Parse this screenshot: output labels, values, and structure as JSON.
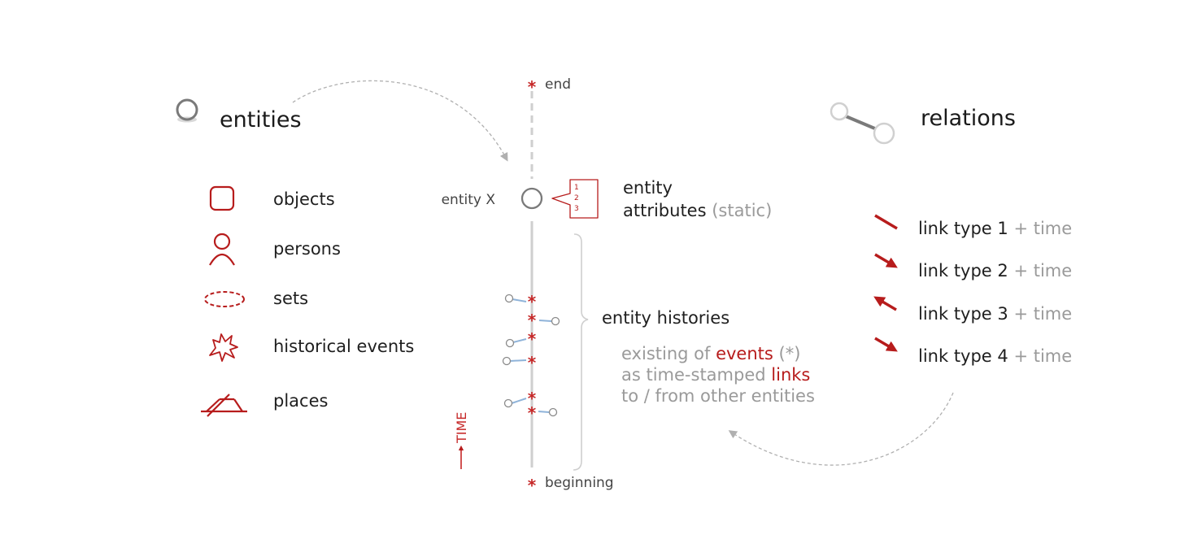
{
  "colors": {
    "accent": "#b71c1c",
    "grey": "#9a9a9a",
    "link": "#8fb3d9",
    "text": "#1f1f1f"
  },
  "entities": {
    "heading": "entities",
    "items": [
      {
        "icon": "square-icon",
        "label": "objects"
      },
      {
        "icon": "person-icon",
        "label": "persons"
      },
      {
        "icon": "dashed-ellipse-icon",
        "label": "sets"
      },
      {
        "icon": "explosion-icon",
        "label": "historical events"
      },
      {
        "icon": "place-icon",
        "label": "places"
      }
    ]
  },
  "timeline": {
    "end": "end",
    "beginning": "beginning",
    "entity_name": "entity X",
    "attribute_numbers": [
      "1",
      "2",
      "3"
    ],
    "time_label": "TIME",
    "event_marker": "*"
  },
  "attributes": {
    "line1": "entity",
    "line2": "attributes",
    "static": "(static)"
  },
  "histories": {
    "heading": "entity histories",
    "line1": {
      "pre": "existing of",
      "events": "events",
      "post": "(*)"
    },
    "line2": {
      "pre": "as time-stamped",
      "links": "links"
    },
    "line3": "to / from other entities"
  },
  "relations": {
    "heading": "relations",
    "time_suffix": "+ time",
    "links": [
      {
        "icon": "line-icon",
        "label": "link type 1"
      },
      {
        "icon": "arrow-down-right-icon",
        "label": "link type 2"
      },
      {
        "icon": "arrow-up-left-icon",
        "label": "link type 3"
      },
      {
        "icon": "arrow-down-right-icon",
        "label": "link type 4"
      }
    ]
  }
}
